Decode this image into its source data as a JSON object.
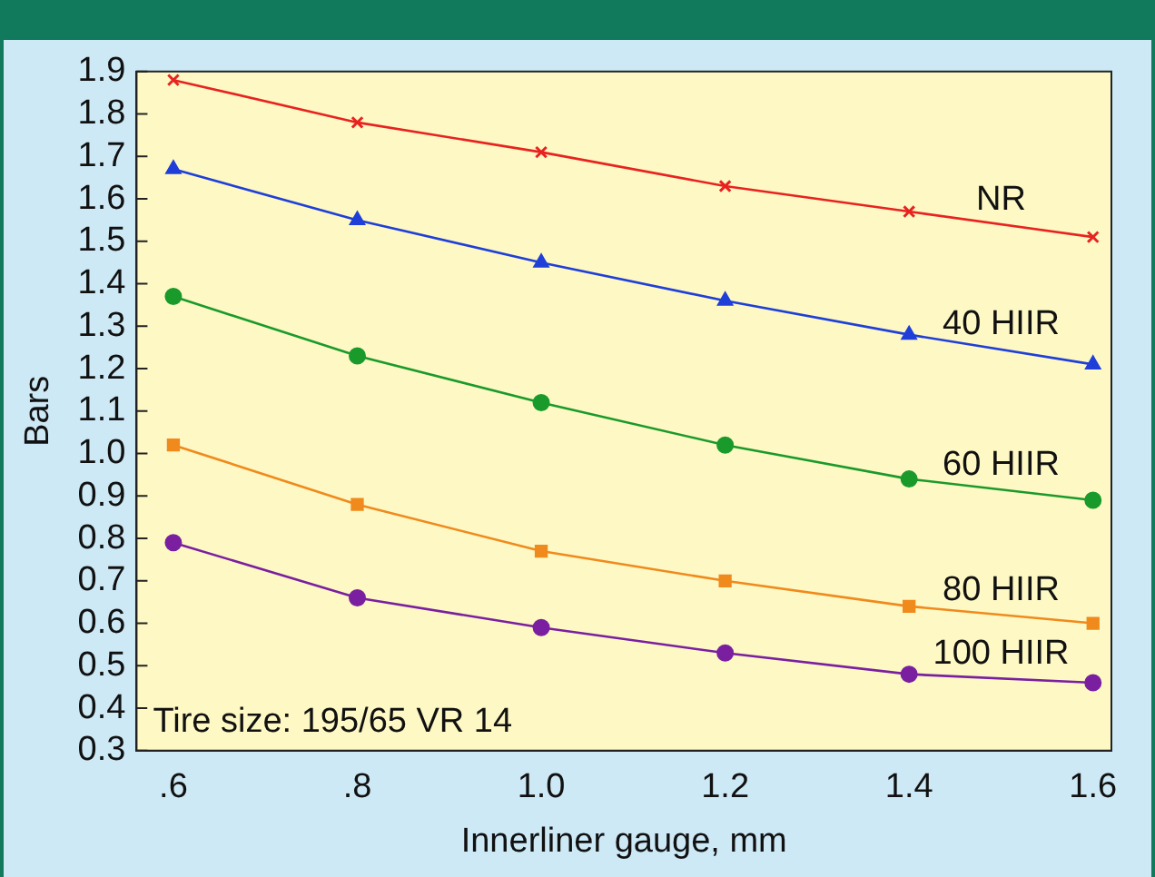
{
  "chart_data": {
    "type": "line",
    "xlabel": "Innerliner gauge, mm",
    "ylabel": "Bars",
    "x": [
      0.6,
      0.8,
      1.0,
      1.2,
      1.4,
      1.6
    ],
    "xlim": [
      0.56,
      1.62
    ],
    "xticks": [
      {
        "value": 0.6,
        "label": ".6"
      },
      {
        "value": 0.8,
        "label": ".8"
      },
      {
        "value": 1.0,
        "label": "1.0"
      },
      {
        "value": 1.2,
        "label": "1.2"
      },
      {
        "value": 1.4,
        "label": "1.4"
      },
      {
        "value": 1.6,
        "label": "1.6"
      }
    ],
    "ylim": [
      0.3,
      1.9
    ],
    "yticks": [
      {
        "value": 0.3,
        "label": "0.3"
      },
      {
        "value": 0.4,
        "label": "0.4"
      },
      {
        "value": 0.5,
        "label": "0.5"
      },
      {
        "value": 0.6,
        "label": "0.6"
      },
      {
        "value": 0.7,
        "label": "0.7"
      },
      {
        "value": 0.8,
        "label": "0.8"
      },
      {
        "value": 0.9,
        "label": "0.9"
      },
      {
        "value": 1.0,
        "label": "1.0"
      },
      {
        "value": 1.1,
        "label": "1.1"
      },
      {
        "value": 1.2,
        "label": "1.2"
      },
      {
        "value": 1.3,
        "label": "1.3"
      },
      {
        "value": 1.4,
        "label": "1.4"
      },
      {
        "value": 1.5,
        "label": "1.5"
      },
      {
        "value": 1.6,
        "label": "1.6"
      },
      {
        "value": 1.7,
        "label": "1.7"
      },
      {
        "value": 1.8,
        "label": "1.8"
      },
      {
        "value": 1.9,
        "label": "1.9"
      }
    ],
    "grid": false,
    "legend": false,
    "line_style": "solid",
    "series": [
      {
        "name": "NR",
        "color": "#e8231f",
        "marker": "cross",
        "values": [
          1.88,
          1.78,
          1.71,
          1.63,
          1.57,
          1.51
        ]
      },
      {
        "name": "40 HIIR",
        "color": "#1f3fd8",
        "marker": "triangle",
        "values": [
          1.67,
          1.55,
          1.45,
          1.36,
          1.28,
          1.21
        ]
      },
      {
        "name": "60 HIIR",
        "color": "#1a9a2a",
        "marker": "circle",
        "values": [
          1.37,
          1.23,
          1.12,
          1.02,
          0.94,
          0.89
        ]
      },
      {
        "name": "80 HIIR",
        "color": "#f08a1c",
        "marker": "square",
        "values": [
          1.02,
          0.88,
          0.77,
          0.7,
          0.64,
          0.6
        ]
      },
      {
        "name": "100 HIIR",
        "color": "#7a1fa0",
        "marker": "circle",
        "values": [
          0.79,
          0.66,
          0.59,
          0.53,
          0.48,
          0.46
        ]
      }
    ],
    "annotations": [
      "Tire size: 195/65 VR 14"
    ]
  }
}
